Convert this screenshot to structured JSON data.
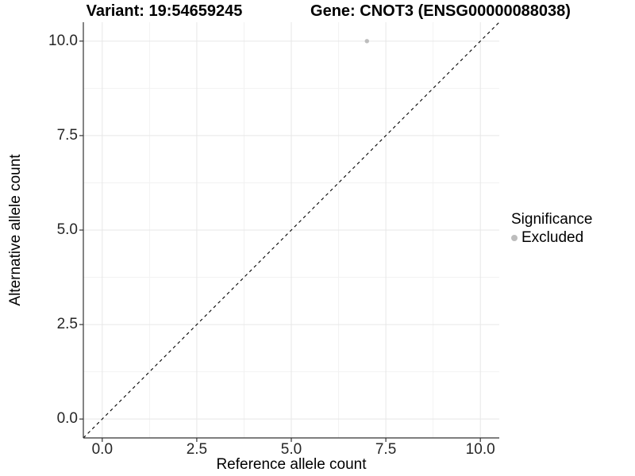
{
  "page": {
    "background": "#ffffff"
  },
  "chart_data": {
    "type": "scatter",
    "titles": {
      "left": "Variant: 19:54659245",
      "right": "Gene: CNOT3 (ENSG00000088038)"
    },
    "xlabel": "Reference allele count",
    "ylabel": "Alternative allele count",
    "xlim": [
      -0.5,
      10.5
    ],
    "ylim": [
      -0.5,
      10.5
    ],
    "x_ticks": [
      0,
      2.5,
      5,
      7.5,
      10
    ],
    "x_tick_labels": [
      "0.0",
      "2.5",
      "5.0",
      "7.5",
      "10.0"
    ],
    "y_ticks": [
      0,
      2.5,
      5,
      7.5,
      10
    ],
    "y_tick_labels": [
      "0.0",
      "2.5",
      "5.0",
      "7.5",
      "10.0"
    ],
    "minor_ticks": [
      1.25,
      3.75,
      6.25,
      8.75
    ],
    "grid": {
      "on": true,
      "major_color": "#e7e7e7",
      "minor_color": "#f2f2f2"
    },
    "axis_line_color": "#333333",
    "identity_line": {
      "style": "dashed",
      "color": "#000000",
      "from": -0.5,
      "to": 10.5
    },
    "points": [
      {
        "x": 7,
        "y": 10,
        "significance": "Excluded",
        "color": "#bdbdbd"
      }
    ],
    "legend": {
      "title": "Significance",
      "position": "right",
      "entries": [
        {
          "label": "Excluded",
          "color": "#bdbdbd",
          "marker": "circle"
        }
      ]
    }
  }
}
